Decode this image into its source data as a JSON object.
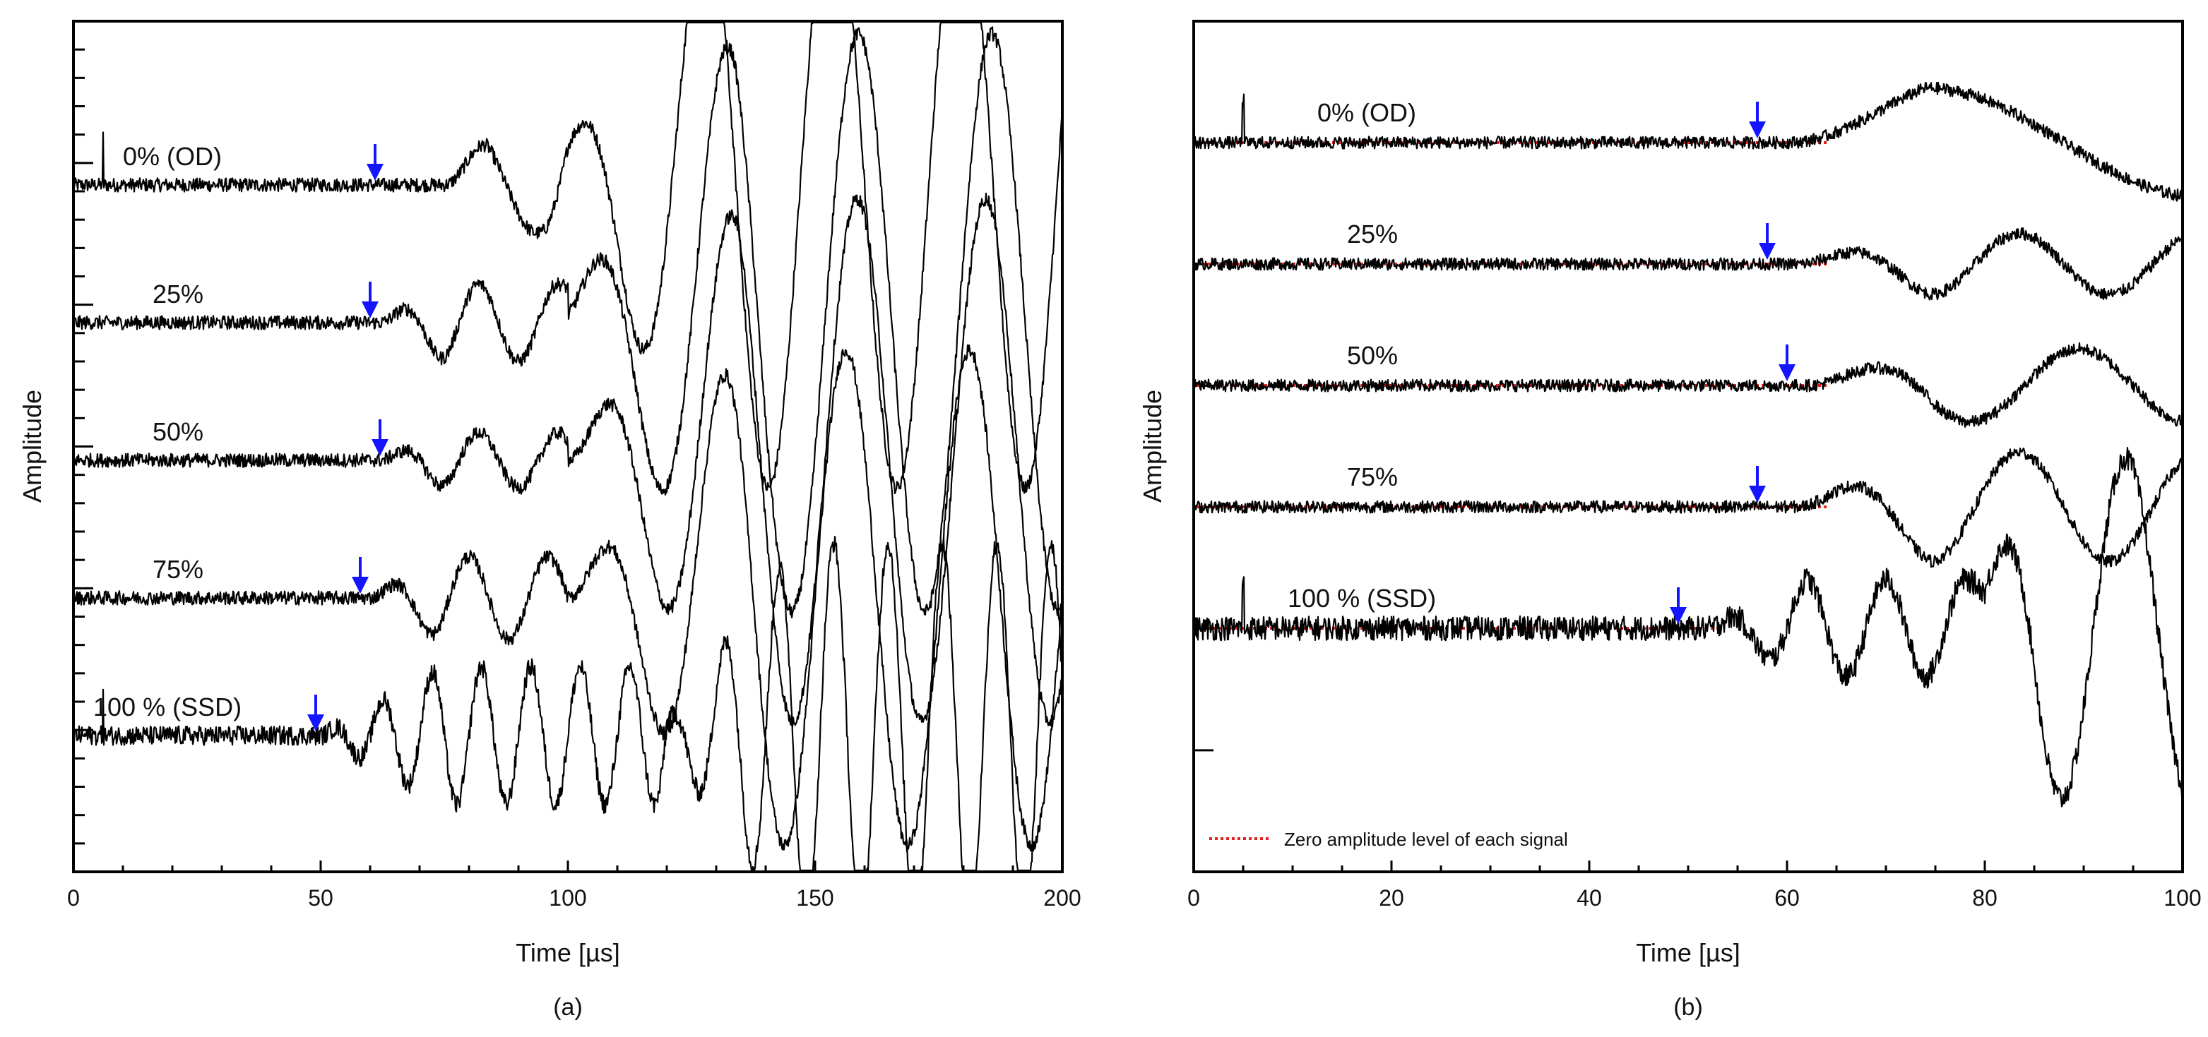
{
  "figure": {
    "background": "#ffffff",
    "line_color": "#000000",
    "arrow_color": "#1414ff",
    "zero_line_color": "#e0201c"
  },
  "chart_data": [
    {
      "type": "line",
      "panel_label": "(a)",
      "xlabel": "Time [µs]",
      "ylabel": "Amplitude",
      "xlim": [
        0,
        200
      ],
      "xticks": [
        0,
        50,
        100,
        150,
        200
      ],
      "x_minor_step": 10,
      "y_minor_count": 30,
      "y_major_every": 5,
      "series": [
        {
          "name": "0% (OD)",
          "offset": 0,
          "noise": 0.05,
          "spike_x": 6,
          "arrow_x": 61,
          "components": [
            {
              "start": 75,
              "end": 100,
              "amp": 0.35,
              "period": 25,
              "phase": 0.25
            },
            {
              "start": 95,
              "end": 200,
              "amp": 2.2,
              "period": 26,
              "phase": 0.5
            }
          ]
        },
        {
          "name": "25%",
          "offset": -1,
          "noise": 0.05,
          "arrow_x": 60,
          "components": [
            {
              "start": 62,
              "end": 100,
              "amp": 0.28,
              "period": 16,
              "phase": 0.25
            },
            {
              "start": 98,
              "end": 200,
              "amp": 2.1,
              "period": 27,
              "phase": 0.3
            }
          ]
        },
        {
          "name": "50%",
          "offset": -2,
          "noise": 0.05,
          "arrow_x": 62,
          "components": [
            {
              "start": 62,
              "end": 100,
              "amp": 0.2,
              "period": 16,
              "phase": 0.25
            },
            {
              "start": 100,
              "end": 200,
              "amp": 1.9,
              "period": 26,
              "phase": 0.15
            }
          ]
        },
        {
          "name": "75%",
          "offset": -3,
          "noise": 0.05,
          "arrow_x": 58,
          "components": [
            {
              "start": 60,
              "end": 100,
              "amp": 0.3,
              "period": 16,
              "phase": 0.25
            },
            {
              "start": 100,
              "end": 200,
              "amp": 1.8,
              "period": 25,
              "phase": 0.6
            }
          ]
        },
        {
          "name": "100 % (SSD)",
          "offset": -4,
          "noise": 0.07,
          "spike_x": 6,
          "arrow_x": 49,
          "components": [
            {
              "start": 50,
              "end": 120,
              "amp": 0.5,
              "period": 10,
              "phase": 0.25
            },
            {
              "start": 118,
              "end": 200,
              "amp": 1.4,
              "period": 11,
              "phase": 0.1
            }
          ]
        }
      ],
      "labels": [
        {
          "text": "0% (OD)",
          "x": 10,
          "series": 0
        },
        {
          "text": "25%",
          "x": 16,
          "series": 1
        },
        {
          "text": "50%",
          "x": 16,
          "series": 2
        },
        {
          "text": "75%",
          "x": 16,
          "series": 3
        },
        {
          "text": "100 % (SSD)",
          "x": 4,
          "series": 4
        }
      ]
    },
    {
      "type": "line",
      "panel_label": "(b)",
      "xlabel": "Time [µs]",
      "ylabel": "Amplitude",
      "xlim": [
        0,
        100
      ],
      "xticks": [
        0,
        20,
        40,
        60,
        80,
        100
      ],
      "x_minor_step": 5,
      "y_minor_count": 7,
      "y_major_every": 1,
      "legend": {
        "label": "Zero amplitude level of each signal",
        "style": "dotted",
        "position": "bottom-left"
      },
      "series": [
        {
          "name": "0% (OD)",
          "offset": 0,
          "noise": 0.05,
          "spike_x": 5,
          "arrow_x": 57,
          "zero_line_end": 64,
          "components": [
            {
              "start": 60,
              "end": 100,
              "amp": 0.45,
              "period": 56,
              "phase": 0.25
            }
          ]
        },
        {
          "name": "25%",
          "offset": -1,
          "noise": 0.05,
          "arrow_x": 58,
          "zero_line_end": 64,
          "components": [
            {
              "start": 61,
              "end": 100,
              "amp": 0.25,
              "period": 18,
              "phase": 0.2
            }
          ]
        },
        {
          "name": "50%",
          "offset": -2,
          "noise": 0.05,
          "arrow_x": 60,
          "zero_line_end": 64,
          "components": [
            {
              "start": 62,
              "end": 100,
              "amp": 0.3,
              "period": 22,
              "phase": 0.2
            }
          ]
        },
        {
          "name": "75%",
          "offset": -3,
          "noise": 0.05,
          "arrow_x": 57,
          "zero_line_end": 64,
          "components": [
            {
              "start": 61,
              "end": 100,
              "amp": 0.45,
              "period": 18,
              "phase": 0.3
            }
          ]
        },
        {
          "name": "100 % (SSD)",
          "offset": -4,
          "noise": 0.1,
          "spike_x": 5,
          "arrow_x": 49,
          "zero_line_end": 53,
          "components": [
            {
              "start": 52,
              "end": 80,
              "amp": 0.4,
              "period": 8,
              "phase": 0.3
            },
            {
              "start": 78,
              "end": 100,
              "amp": 1.4,
              "period": 13,
              "phase": 0.05
            }
          ]
        }
      ],
      "labels": [
        {
          "text": "0% (OD)",
          "x": 12.5,
          "series": 0
        },
        {
          "text": "25%",
          "x": 15.5,
          "series": 1
        },
        {
          "text": "50%",
          "x": 15.5,
          "series": 2
        },
        {
          "text": "75%",
          "x": 15.5,
          "series": 3
        },
        {
          "text": "100 % (SSD)",
          "x": 9.5,
          "series": 4
        }
      ]
    }
  ]
}
